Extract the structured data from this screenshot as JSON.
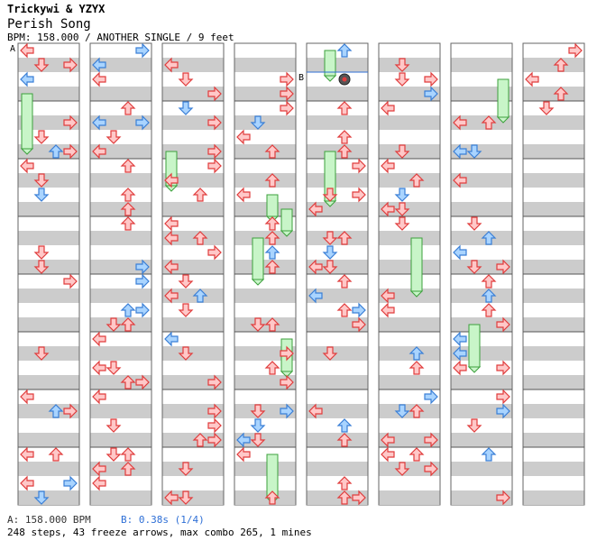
{
  "header": {
    "artist": "Trickywi & YZYX",
    "title": "Perish Song",
    "meta": "BPM: 158.000 / ANOTHER SINGLE / 9 feet"
  },
  "markers": {
    "a": "A",
    "b": "B"
  },
  "footer": {
    "bpm_a": "A: 158.000 BPM",
    "bpm_b": "B: 0.38s (1/4)",
    "stats": "248 steps, 43 freeze arrows, max combo 265, 1 mines"
  },
  "colors": {
    "arrow_red_fill": "#ffc8c8",
    "arrow_red_stroke": "#e03c3c",
    "arrow_blue_fill": "#a9d4ff",
    "arrow_blue_stroke": "#3a7fd6",
    "freeze_fill": "#c8f5c8",
    "freeze_stroke": "#3ca03c",
    "stripe_gray": "#cccccc",
    "bpm_line": "#2e6fd6"
  },
  "icons": {
    "arrow": "step-arrow-icon",
    "freeze": "freeze-arrow-icon",
    "mine": "mine-icon"
  }
}
